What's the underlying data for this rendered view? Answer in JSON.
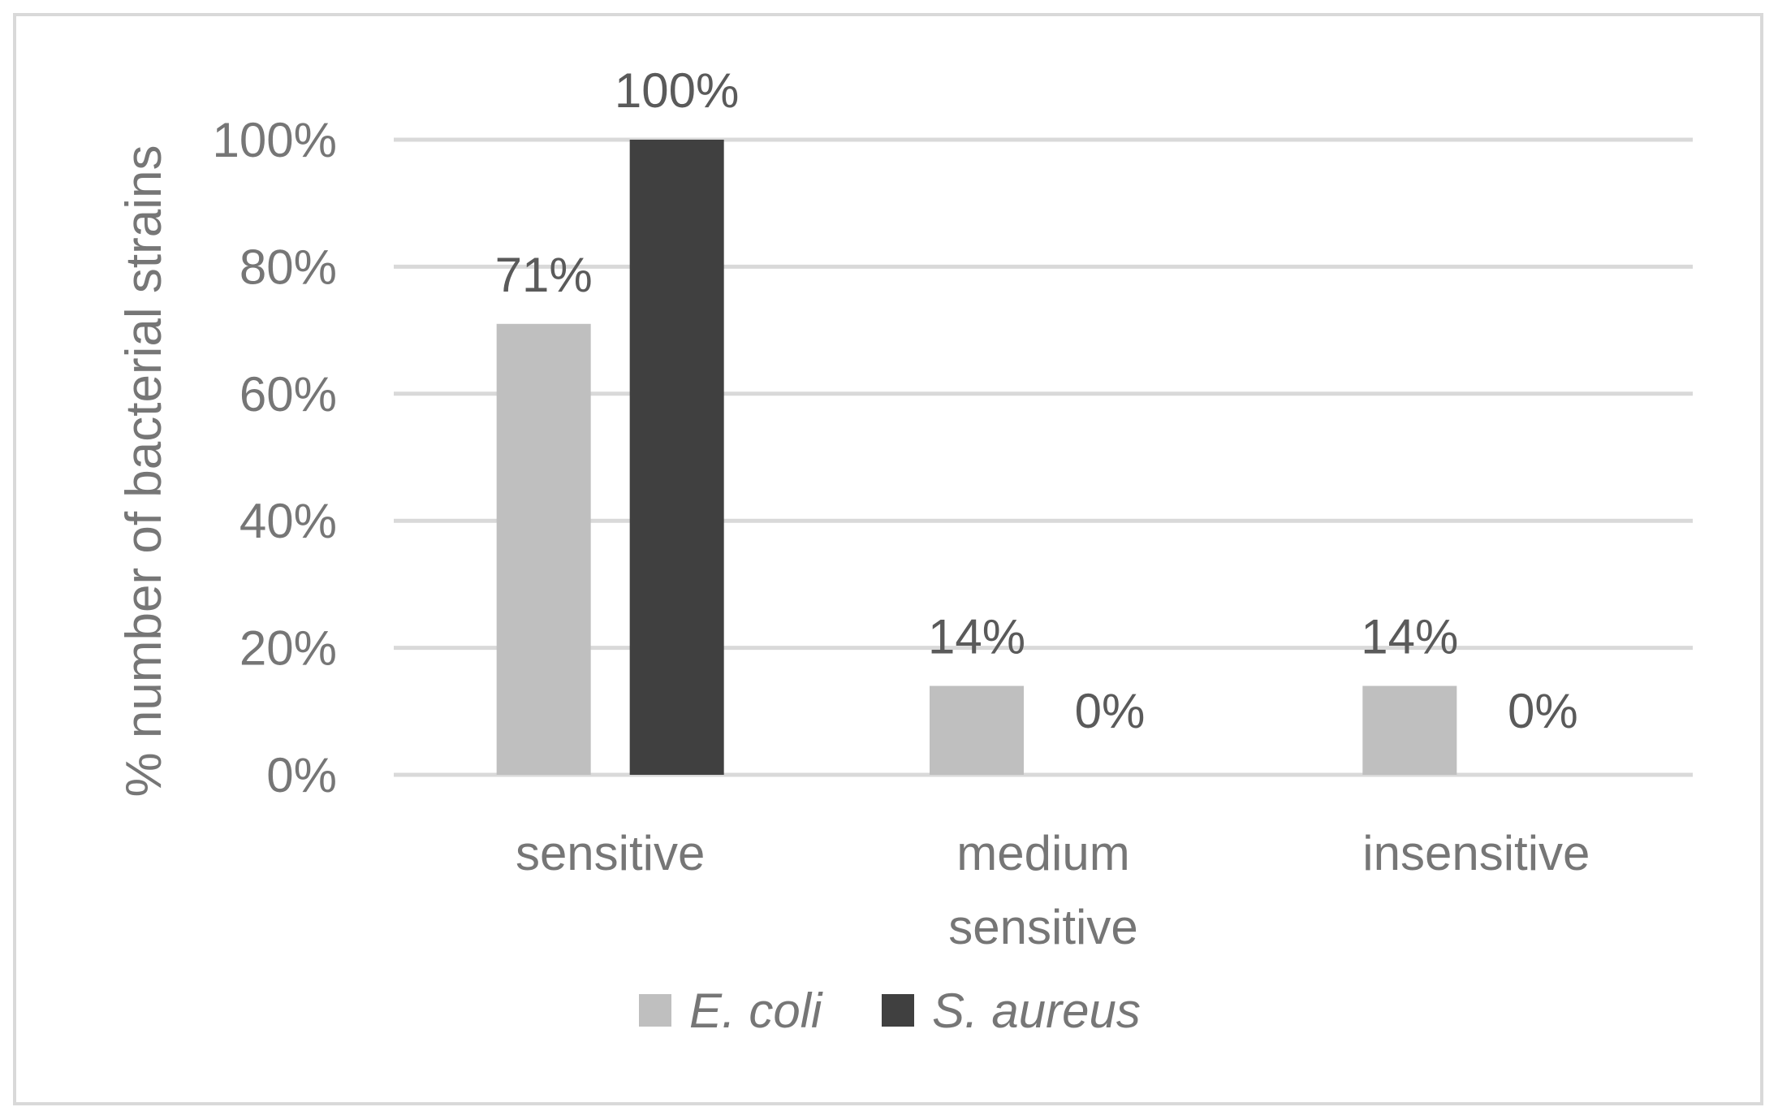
{
  "chart_data": {
    "type": "bar",
    "title": "",
    "xlabel": "",
    "ylabel": "% number of bacterial strains",
    "categories": [
      [
        "sensitive"
      ],
      [
        "medium",
        "sensitive"
      ],
      [
        "insensitive"
      ]
    ],
    "series": [
      {
        "name": "E. coli",
        "color": "#bfbfbf",
        "values": [
          71,
          14,
          14
        ],
        "labels": [
          "71%",
          "14%",
          "14%"
        ]
      },
      {
        "name": "S. aureus",
        "color": "#404040",
        "values": [
          100,
          0,
          0
        ],
        "labels": [
          "100%",
          "0%",
          "0%"
        ]
      }
    ],
    "ylim": [
      0,
      100
    ],
    "yticks": [
      0,
      20,
      40,
      60,
      80,
      100
    ],
    "ytick_labels": [
      "0%",
      "20%",
      "40%",
      "60%",
      "80%",
      "100%"
    ],
    "grid": true,
    "gridline_color": "#d9d9d9",
    "legend": "bottom"
  }
}
